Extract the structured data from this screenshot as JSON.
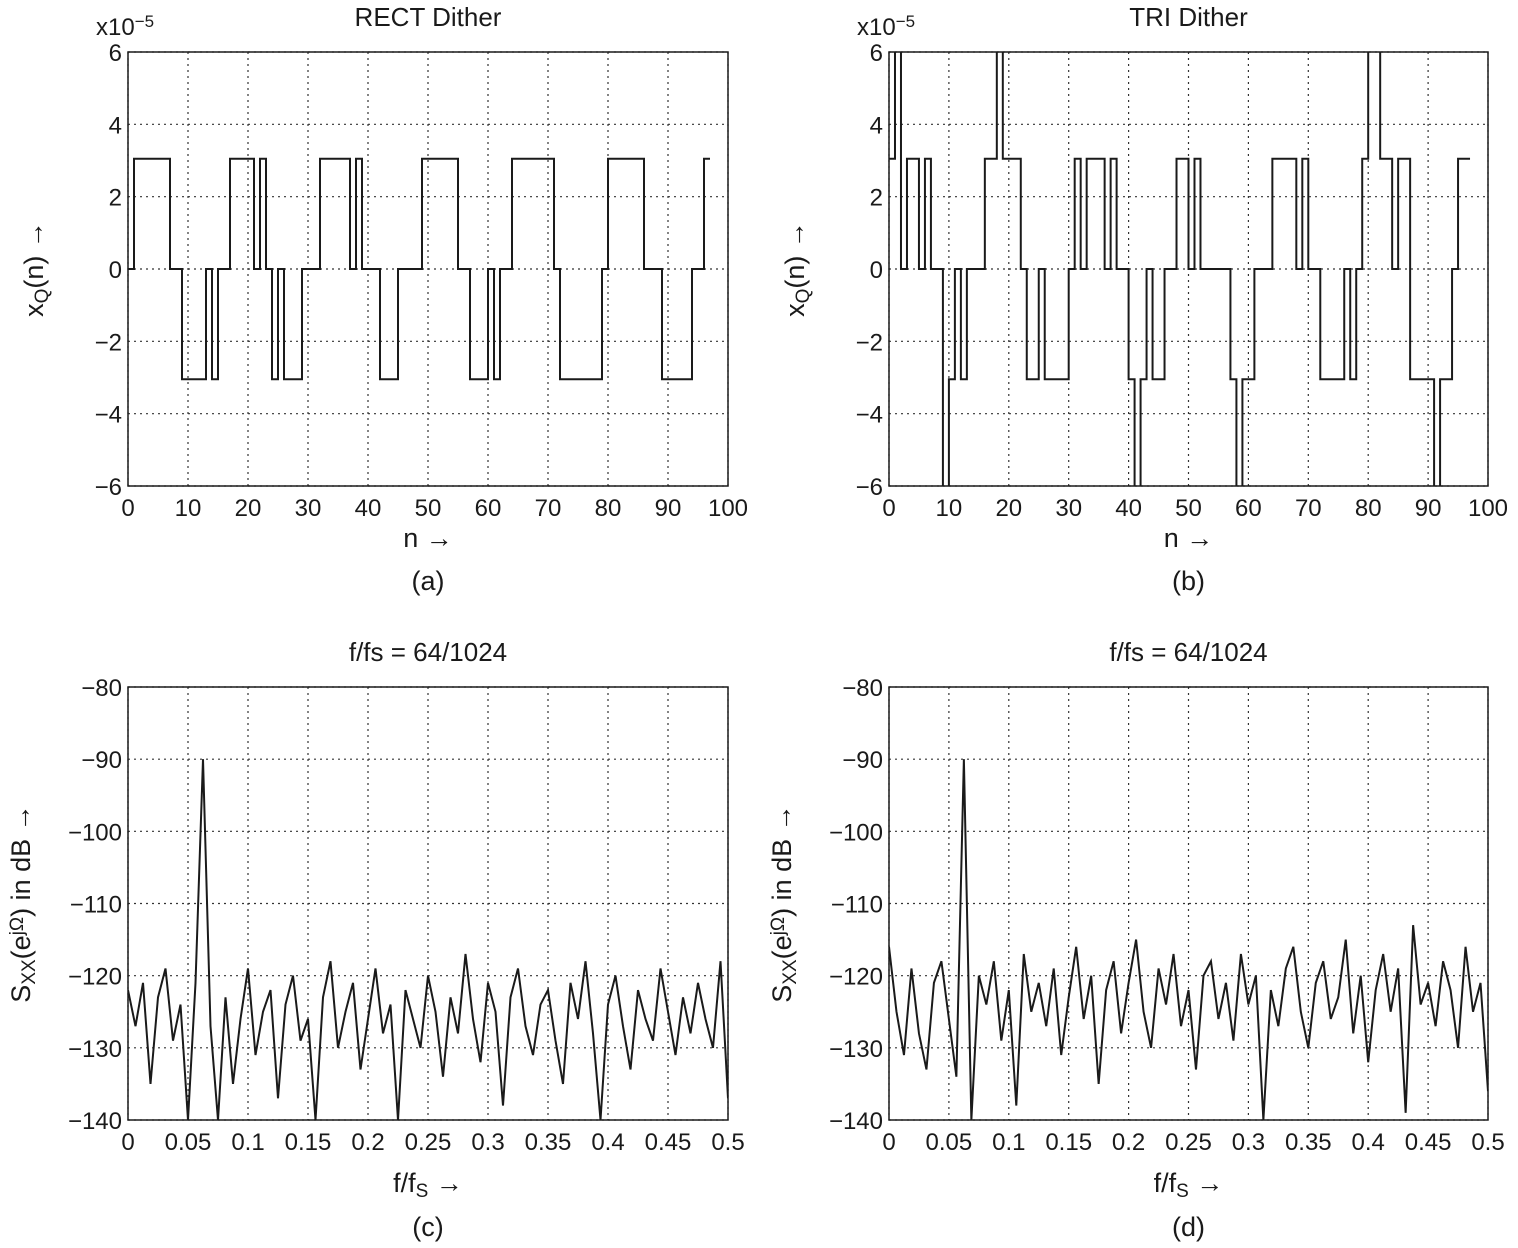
{
  "chart_data": [
    {
      "type": "line",
      "drawstyle": "steps-post",
      "title": "RECT Dither",
      "caption": "(a)",
      "color": "#1a1a1a",
      "grid": true,
      "y_multiplier": {
        "base": "x10",
        "exponent": "−5"
      },
      "xlabel": [
        {
          "text": "n →"
        }
      ],
      "ylabel": [
        {
          "text": "x"
        },
        {
          "text": "Q",
          "shift": "sub"
        },
        {
          "text": "(n) →"
        }
      ],
      "xlim": [
        0,
        100
      ],
      "xticks": [
        0,
        10,
        20,
        30,
        40,
        50,
        60,
        70,
        80,
        90,
        100
      ],
      "ylim": [
        -6,
        6
      ],
      "yticks": [
        {
          "value": -6,
          "label": "−6"
        },
        {
          "value": -4,
          "label": "−4"
        },
        {
          "value": -2,
          "label": "−2"
        },
        0,
        2,
        4,
        6
      ],
      "x": [
        0,
        1,
        2,
        3,
        4,
        5,
        6,
        7,
        8,
        9,
        10,
        11,
        12,
        13,
        14,
        15,
        16,
        17,
        18,
        19,
        20,
        21,
        22,
        23,
        24,
        25,
        26,
        27,
        28,
        29,
        30,
        31,
        32,
        33,
        34,
        35,
        36,
        37,
        38,
        39,
        40,
        41,
        42,
        43,
        44,
        45,
        46,
        47,
        48,
        49,
        50,
        51,
        52,
        53,
        54,
        55,
        56,
        57,
        58,
        59,
        60,
        61,
        62,
        63,
        64,
        65,
        66,
        67,
        68,
        69,
        70,
        71,
        72,
        73,
        74,
        75,
        76,
        77,
        78,
        79,
        80,
        81,
        82,
        83,
        84,
        85,
        86,
        87,
        88,
        89,
        90,
        91,
        92,
        93,
        94,
        95,
        96,
        97
      ],
      "values": [
        0,
        3.05,
        3.05,
        3.05,
        3.05,
        3.05,
        3.05,
        0,
        0,
        -3.05,
        -3.05,
        -3.05,
        -3.05,
        0,
        -3.05,
        0,
        0,
        3.05,
        3.05,
        3.05,
        3.05,
        0,
        3.05,
        0,
        -3.05,
        0,
        -3.05,
        -3.05,
        -3.05,
        0,
        0,
        0,
        3.05,
        3.05,
        3.05,
        3.05,
        3.05,
        0,
        3.05,
        0,
        0,
        0,
        -3.05,
        -3.05,
        -3.05,
        0,
        0,
        0,
        0,
        3.05,
        3.05,
        3.05,
        3.05,
        3.05,
        3.05,
        0,
        0,
        -3.05,
        -3.05,
        -3.05,
        0,
        -3.05,
        0,
        0,
        3.05,
        3.05,
        3.05,
        3.05,
        3.05,
        3.05,
        3.05,
        0,
        -3.05,
        -3.05,
        -3.05,
        -3.05,
        -3.05,
        -3.05,
        -3.05,
        0,
        3.05,
        3.05,
        3.05,
        3.05,
        3.05,
        3.05,
        0,
        0,
        0,
        -3.05,
        -3.05,
        -3.05,
        -3.05,
        -3.05,
        0,
        0,
        3.05,
        3.05
      ]
    },
    {
      "type": "line",
      "drawstyle": "steps-post",
      "title": "TRI Dither",
      "caption": "(b)",
      "color": "#1a1a1a",
      "grid": true,
      "y_multiplier": {
        "base": "x10",
        "exponent": "−5"
      },
      "xlabel": [
        {
          "text": "n →"
        }
      ],
      "ylabel": [
        {
          "text": "x"
        },
        {
          "text": "Q",
          "shift": "sub"
        },
        {
          "text": "(n) →"
        }
      ],
      "xlim": [
        0,
        100
      ],
      "xticks": [
        0,
        10,
        20,
        30,
        40,
        50,
        60,
        70,
        80,
        90,
        100
      ],
      "ylim": [
        -6,
        6
      ],
      "yticks": [
        {
          "value": -6,
          "label": "−6"
        },
        {
          "value": -4,
          "label": "−4"
        },
        {
          "value": -2,
          "label": "−2"
        },
        0,
        2,
        4,
        6
      ],
      "x": [
        0,
        1,
        2,
        3,
        4,
        5,
        6,
        7,
        8,
        9,
        10,
        11,
        12,
        13,
        14,
        15,
        16,
        17,
        18,
        19,
        20,
        21,
        22,
        23,
        24,
        25,
        26,
        27,
        28,
        29,
        30,
        31,
        32,
        33,
        34,
        35,
        36,
        37,
        38,
        39,
        40,
        41,
        42,
        43,
        44,
        45,
        46,
        47,
        48,
        49,
        50,
        51,
        52,
        53,
        54,
        55,
        56,
        57,
        58,
        59,
        60,
        61,
        62,
        63,
        64,
        65,
        66,
        67,
        68,
        69,
        70,
        71,
        72,
        73,
        74,
        75,
        76,
        77,
        78,
        79,
        80,
        81,
        82,
        83,
        84,
        85,
        86,
        87,
        88,
        89,
        90,
        91,
        92,
        93,
        94,
        95,
        96,
        97
      ],
      "values": [
        3.05,
        6.1,
        0,
        3.05,
        3.05,
        0,
        3.05,
        0,
        0,
        -6.1,
        -3.05,
        0,
        -3.05,
        0,
        0,
        0,
        3.05,
        3.05,
        6.1,
        3.05,
        3.05,
        3.05,
        0,
        -3.05,
        -3.05,
        0,
        -3.05,
        -3.05,
        -3.05,
        -3.05,
        0,
        3.05,
        0,
        3.05,
        3.05,
        3.05,
        0,
        3.05,
        0,
        0,
        -3.05,
        -6.1,
        -3.05,
        0,
        -3.05,
        -3.05,
        0,
        0,
        3.05,
        3.05,
        0,
        3.05,
        0,
        0,
        0,
        0,
        0,
        -3.05,
        -6.1,
        -3.05,
        -3.05,
        0,
        0,
        0,
        3.05,
        3.05,
        3.05,
        3.05,
        0,
        3.05,
        0,
        0,
        -3.05,
        -3.05,
        -3.05,
        -3.05,
        0,
        -3.05,
        0,
        3.05,
        6.1,
        6.1,
        3.05,
        3.05,
        0,
        3.05,
        3.05,
        -3.05,
        -3.05,
        -3.05,
        -3.05,
        -6.1,
        -3.05,
        -3.05,
        0,
        3.05,
        3.05,
        3.05
      ]
    },
    {
      "type": "line",
      "title": "f/fs = 64/1024",
      "caption": "(c)",
      "color": "#1a1a1a",
      "grid": true,
      "xlabel": [
        {
          "text": "f/f"
        },
        {
          "text": "S",
          "shift": "sub"
        },
        {
          "text": " →"
        }
      ],
      "ylabel": [
        {
          "text": "S"
        },
        {
          "text": "XX",
          "shift": "sub"
        },
        {
          "text": "(e"
        },
        {
          "text": "jΩ",
          "shift": "super"
        },
        {
          "text": ") in dB →"
        }
      ],
      "xlim": [
        0,
        0.5
      ],
      "xticks": [
        0,
        0.05,
        0.1,
        0.15,
        0.2,
        0.25,
        0.3,
        0.35,
        0.4,
        0.45,
        0.5
      ],
      "ylim": [
        -140,
        -80
      ],
      "yticks": [
        {
          "value": -140,
          "label": "−140"
        },
        {
          "value": -130,
          "label": "−130"
        },
        {
          "value": -120,
          "label": "−120"
        },
        {
          "value": -110,
          "label": "−110"
        },
        {
          "value": -100,
          "label": "−100"
        },
        {
          "value": -90,
          "label": "−90"
        },
        {
          "value": -80,
          "label": "−80"
        }
      ],
      "x": [
        0,
        0.00625,
        0.0125,
        0.01875,
        0.025,
        0.03125,
        0.0375,
        0.04375,
        0.05,
        0.05625,
        0.0625,
        0.06875,
        0.075,
        0.08125,
        0.0875,
        0.09375,
        0.1,
        0.10625,
        0.1125,
        0.11875,
        0.125,
        0.13125,
        0.1375,
        0.14375,
        0.15,
        0.15625,
        0.1625,
        0.16875,
        0.175,
        0.18125,
        0.1875,
        0.19375,
        0.2,
        0.20625,
        0.2125,
        0.21875,
        0.225,
        0.23125,
        0.2375,
        0.24375,
        0.25,
        0.25625,
        0.2625,
        0.26875,
        0.275,
        0.28125,
        0.2875,
        0.29375,
        0.3,
        0.30625,
        0.3125,
        0.31875,
        0.325,
        0.33125,
        0.3375,
        0.34375,
        0.35,
        0.35625,
        0.3625,
        0.36875,
        0.375,
        0.38125,
        0.3875,
        0.39375,
        0.4,
        0.40625,
        0.4125,
        0.41875,
        0.425,
        0.43125,
        0.4375,
        0.44375,
        0.45,
        0.45625,
        0.4625,
        0.46875,
        0.475,
        0.48125,
        0.4875,
        0.49375,
        0.5
      ],
      "values": [
        -122,
        -127,
        -121,
        -135,
        -123,
        -119,
        -129,
        -124,
        -140,
        -121,
        -90,
        -127,
        -140,
        -123,
        -135,
        -126,
        -119,
        -131,
        -125,
        -122,
        -137,
        -124,
        -120,
        -129,
        -126,
        -140,
        -123,
        -118,
        -130,
        -125,
        -121,
        -133,
        -126,
        -119,
        -128,
        -124,
        -140,
        -122,
        -126,
        -130,
        -120,
        -125,
        -134,
        -123,
        -128,
        -117,
        -126,
        -132,
        -121,
        -125,
        -138,
        -123,
        -119,
        -127,
        -131,
        -124,
        -122,
        -129,
        -135,
        -121,
        -126,
        -118,
        -128,
        -140,
        -124,
        -120,
        -127,
        -133,
        -122,
        -126,
        -129,
        -119,
        -125,
        -131,
        -123,
        -128,
        -121,
        -126,
        -130,
        -118,
        -137
      ]
    },
    {
      "type": "line",
      "title": "f/fs = 64/1024",
      "caption": "(d)",
      "color": "#1a1a1a",
      "grid": true,
      "xlabel": [
        {
          "text": "f/f"
        },
        {
          "text": "S",
          "shift": "sub"
        },
        {
          "text": " →"
        }
      ],
      "ylabel": [
        {
          "text": "S"
        },
        {
          "text": "XX",
          "shift": "sub"
        },
        {
          "text": "(e"
        },
        {
          "text": "jΩ",
          "shift": "super"
        },
        {
          "text": ") in dB →"
        }
      ],
      "xlim": [
        0,
        0.5
      ],
      "xticks": [
        0,
        0.05,
        0.1,
        0.15,
        0.2,
        0.25,
        0.3,
        0.35,
        0.4,
        0.45,
        0.5
      ],
      "ylim": [
        -140,
        -80
      ],
      "yticks": [
        {
          "value": -140,
          "label": "−140"
        },
        {
          "value": -130,
          "label": "−130"
        },
        {
          "value": -120,
          "label": "−120"
        },
        {
          "value": -110,
          "label": "−110"
        },
        {
          "value": -100,
          "label": "−100"
        },
        {
          "value": -90,
          "label": "−90"
        },
        {
          "value": -80,
          "label": "−80"
        }
      ],
      "x": [
        0,
        0.00625,
        0.0125,
        0.01875,
        0.025,
        0.03125,
        0.0375,
        0.04375,
        0.05,
        0.05625,
        0.0625,
        0.06875,
        0.075,
        0.08125,
        0.0875,
        0.09375,
        0.1,
        0.10625,
        0.1125,
        0.11875,
        0.125,
        0.13125,
        0.1375,
        0.14375,
        0.15,
        0.15625,
        0.1625,
        0.16875,
        0.175,
        0.18125,
        0.1875,
        0.19375,
        0.2,
        0.20625,
        0.2125,
        0.21875,
        0.225,
        0.23125,
        0.2375,
        0.24375,
        0.25,
        0.25625,
        0.2625,
        0.26875,
        0.275,
        0.28125,
        0.2875,
        0.29375,
        0.3,
        0.30625,
        0.3125,
        0.31875,
        0.325,
        0.33125,
        0.3375,
        0.34375,
        0.35,
        0.35625,
        0.3625,
        0.36875,
        0.375,
        0.38125,
        0.3875,
        0.39375,
        0.4,
        0.40625,
        0.4125,
        0.41875,
        0.425,
        0.43125,
        0.4375,
        0.44375,
        0.45,
        0.45625,
        0.4625,
        0.46875,
        0.475,
        0.48125,
        0.4875,
        0.49375,
        0.5
      ],
      "values": [
        -116,
        -125,
        -131,
        -119,
        -128,
        -133,
        -121,
        -118,
        -126,
        -134,
        -90,
        -140,
        -120,
        -124,
        -118,
        -129,
        -122,
        -138,
        -117,
        -125,
        -121,
        -127,
        -119,
        -131,
        -123,
        -116,
        -126,
        -120,
        -135,
        -122,
        -118,
        -128,
        -121,
        -115,
        -125,
        -130,
        -119,
        -124,
        -117,
        -127,
        -122,
        -133,
        -120,
        -118,
        -126,
        -121,
        -129,
        -117,
        -124,
        -120,
        -140,
        -122,
        -127,
        -119,
        -116,
        -125,
        -130,
        -121,
        -118,
        -126,
        -123,
        -115,
        -128,
        -120,
        -132,
        -122,
        -117,
        -125,
        -119,
        -139,
        -113,
        -124,
        -121,
        -127,
        -118,
        -122,
        -130,
        -116,
        -125,
        -121,
        -136
      ]
    }
  ]
}
